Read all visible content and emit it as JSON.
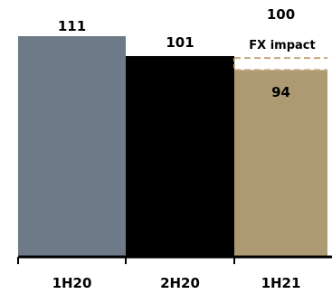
{
  "chart_data": {
    "type": "bar",
    "categories": [
      "1H20",
      "2H20",
      "1H21"
    ],
    "values": [
      111,
      101,
      94
    ],
    "value_labels": [
      "111",
      "101",
      "94"
    ],
    "overlay": {
      "category": "1H21",
      "value": 100,
      "value_label": "100",
      "label": "FX impact",
      "style": "dashed outline"
    },
    "colors": [
      "#6f7a88",
      "#000000",
      "#ad9a72"
    ],
    "overlay_color": "#c4a880",
    "ylim": [
      0,
      111
    ],
    "grid": false,
    "legend": "none"
  }
}
